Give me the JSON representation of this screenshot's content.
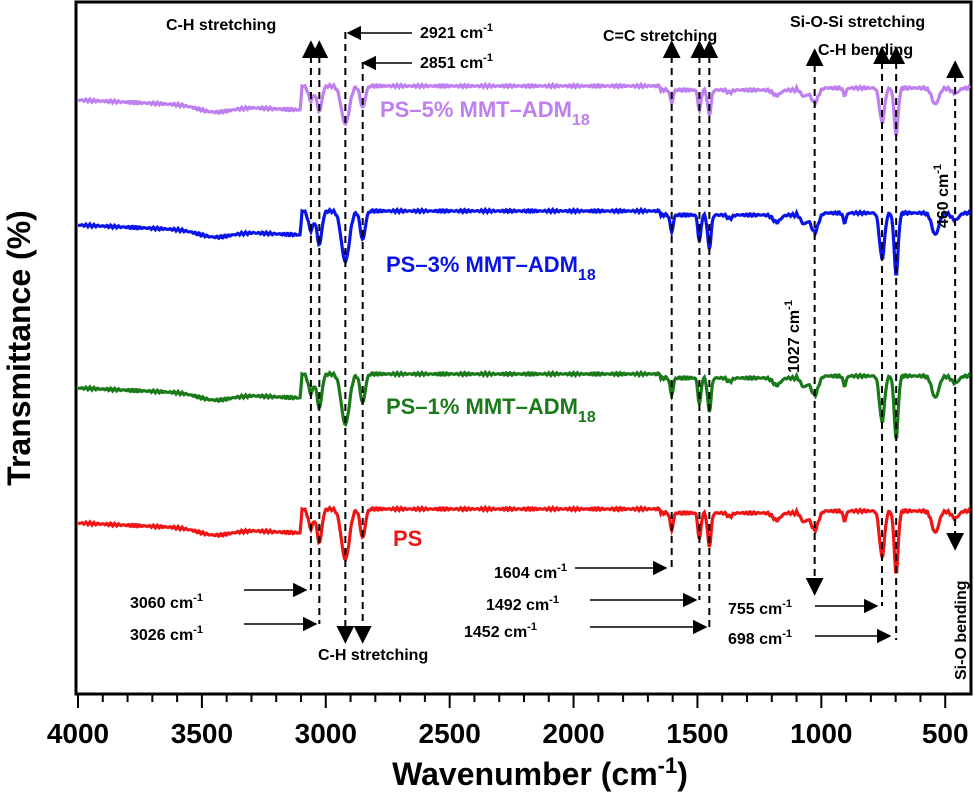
{
  "chart_data": {
    "type": "line",
    "xlabel_main": "Wavenumber (cm",
    "xlabel_sup": "-1",
    "xlabel_end": ")",
    "ylabel": "Transmittance (%)",
    "xlim": [
      4000,
      400
    ],
    "x_reversed": true,
    "xticks": [
      4000,
      3500,
      3000,
      2500,
      2000,
      1500,
      1000,
      500
    ],
    "y_axis_values": false,
    "series": [
      {
        "name": "PS–5% MMT–ADM",
        "sub": "18",
        "color": "#bf7fee"
      },
      {
        "name": "PS–3% MMT–ADM",
        "sub": "18",
        "color": "#0a14e6"
      },
      {
        "name": "PS–1% MMT–ADM",
        "sub": "18",
        "color": "#1a7a1a"
      },
      {
        "name": "PS",
        "sub": "",
        "color": "#ee1515"
      }
    ],
    "peaks_cm": [
      3060,
      3026,
      2921,
      2851,
      1604,
      1492,
      1452,
      1027,
      755,
      698,
      460
    ],
    "annotations": {
      "ch_stretch_top": "C-H stretching",
      "ch_stretch_bottom": "C-H stretching",
      "cc_stretch": "C=C stretching",
      "siosi_stretch": "Si-O-Si stretching",
      "ch_bend": "C-H bending",
      "sio_bend": "Si-O bending",
      "p2921": "2921 cm",
      "p2851": "2851 cm",
      "p3060": "3060 cm",
      "p3026": "3026 cm",
      "p1604": "1604 cm",
      "p1492": "1492 cm",
      "p1452": "1452 cm",
      "p1027": "1027 cm",
      "p755": "755 cm",
      "p698": "698 cm",
      "p460": "460 cm",
      "unit_sup": "-1"
    }
  }
}
